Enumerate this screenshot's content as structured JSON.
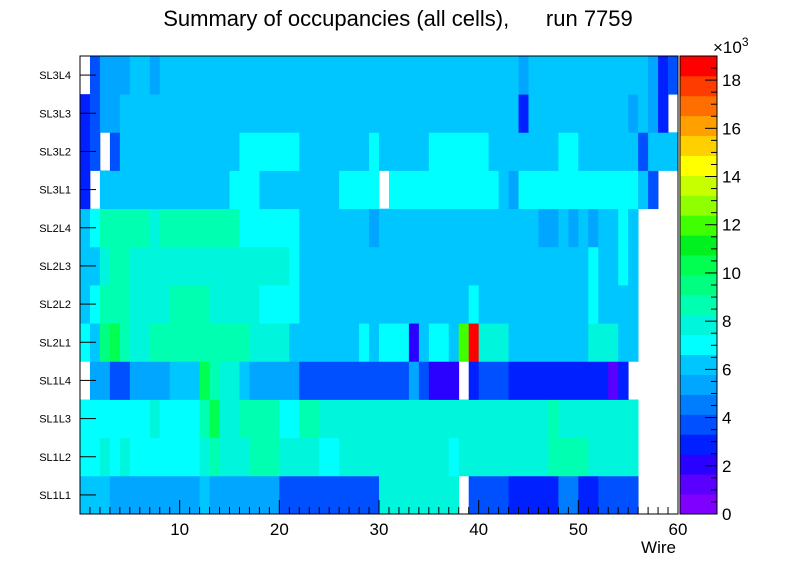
{
  "chart_data": {
    "type": "heatmap",
    "title": "Summary of occupancies (all cells),      run 7759",
    "xlabel": "Wire",
    "x_range": [
      0,
      60
    ],
    "x_ticks": [
      10,
      20,
      30,
      40,
      50,
      60
    ],
    "layers": [
      "SL1L1",
      "SL1L2",
      "SL1L3",
      "SL1L4",
      "SL2L1",
      "SL2L2",
      "SL2L3",
      "SL2L4",
      "SL3L1",
      "SL3L2",
      "SL3L3",
      "SL3L4"
    ],
    "z_range": [
      0,
      19000
    ],
    "z_ticks": [
      0,
      2,
      4,
      6,
      8,
      10,
      12,
      14,
      16,
      18
    ],
    "z_multiplier": "×10",
    "z_exponent": "3",
    "palette": [
      "#7f00ff",
      "#5a00ff",
      "#2a00ff",
      "#0020ff",
      "#0050ff",
      "#007cff",
      "#00a6ff",
      "#00c6ff",
      "#00ffff",
      "#00f6dc",
      "#00ffb0",
      "#00ff80",
      "#00ff50",
      "#00f020",
      "#40ff00",
      "#90ff00",
      "#c8ff00",
      "#ffff00",
      "#ffd000",
      "#ffa000",
      "#ff6e00",
      "#ff3c00",
      "#ff0000"
    ],
    "rows": [
      {
        "layer": "SL1L1",
        "runs": [
          [
            1,
            1,
            6000
          ],
          [
            2,
            3,
            6000
          ],
          [
            4,
            12,
            5000
          ],
          [
            13,
            13,
            6000
          ],
          [
            14,
            20,
            5000
          ],
          [
            21,
            30,
            3500
          ],
          [
            31,
            38,
            7600
          ],
          [
            39,
            39,
            null
          ],
          [
            40,
            43,
            3600
          ],
          [
            44,
            48,
            3000
          ],
          [
            49,
            50,
            4200
          ],
          [
            51,
            52,
            3000
          ],
          [
            53,
            56,
            4000
          ]
        ]
      },
      {
        "layer": "SL1L2",
        "runs": [
          [
            1,
            2,
            7000
          ],
          [
            3,
            3,
            7600
          ],
          [
            4,
            4,
            7000
          ],
          [
            5,
            5,
            7600
          ],
          [
            6,
            12,
            7000
          ],
          [
            13,
            13,
            7800
          ],
          [
            14,
            14,
            9000
          ],
          [
            15,
            15,
            8200
          ],
          [
            16,
            17,
            7800
          ],
          [
            18,
            20,
            9000
          ],
          [
            21,
            24,
            8200
          ],
          [
            25,
            26,
            7000
          ],
          [
            27,
            37,
            8000
          ],
          [
            38,
            38,
            7200
          ],
          [
            39,
            39,
            8000
          ],
          [
            40,
            47,
            8000
          ],
          [
            48,
            51,
            8800
          ],
          [
            52,
            56,
            8000
          ]
        ]
      },
      {
        "layer": "SL1L3",
        "runs": [
          [
            1,
            7,
            7000
          ],
          [
            8,
            8,
            7600
          ],
          [
            9,
            12,
            7000
          ],
          [
            13,
            13,
            8500
          ],
          [
            14,
            14,
            10000
          ],
          [
            15,
            16,
            7800
          ],
          [
            17,
            19,
            8600
          ],
          [
            20,
            20,
            9000
          ],
          [
            21,
            22,
            7000
          ],
          [
            23,
            24,
            8400
          ],
          [
            25,
            26,
            7600
          ],
          [
            27,
            47,
            8000
          ],
          [
            48,
            48,
            8800
          ],
          [
            49,
            56,
            8000
          ]
        ]
      },
      {
        "layer": "SL1L4",
        "runs": [
          [
            1,
            1,
            null
          ],
          [
            2,
            3,
            5200
          ],
          [
            4,
            5,
            4000
          ],
          [
            6,
            9,
            5000
          ],
          [
            10,
            12,
            6000
          ],
          [
            13,
            13,
            10000
          ],
          [
            14,
            14,
            9000
          ],
          [
            15,
            16,
            8000
          ],
          [
            17,
            17,
            5800
          ],
          [
            18,
            18,
            5000
          ],
          [
            19,
            19,
            5700
          ],
          [
            20,
            22,
            5000
          ],
          [
            23,
            33,
            3600
          ],
          [
            34,
            34,
            5000
          ],
          [
            35,
            35,
            4000
          ],
          [
            36,
            38,
            2000
          ],
          [
            39,
            39,
            null
          ],
          [
            40,
            40,
            3000
          ],
          [
            41,
            43,
            4000
          ],
          [
            44,
            53,
            3000
          ],
          [
            54,
            54,
            1500
          ],
          [
            55,
            55,
            3000
          ]
        ]
      },
      {
        "layer": "SL2L1",
        "runs": [
          [
            1,
            1,
            7000
          ],
          [
            2,
            2,
            6200
          ],
          [
            3,
            3,
            9500
          ],
          [
            4,
            4,
            10000
          ],
          [
            5,
            5,
            9000
          ],
          [
            6,
            7,
            8000
          ],
          [
            8,
            17,
            9000
          ],
          [
            18,
            21,
            7600
          ],
          [
            22,
            22,
            6200
          ],
          [
            23,
            28,
            6000
          ],
          [
            29,
            29,
            6800
          ],
          [
            30,
            30,
            6000
          ],
          [
            31,
            33,
            6700
          ],
          [
            34,
            34,
            2000
          ],
          [
            35,
            35,
            6000
          ],
          [
            36,
            37,
            6700
          ],
          [
            38,
            38,
            5800
          ],
          [
            39,
            39,
            12000
          ],
          [
            40,
            40,
            19000
          ],
          [
            41,
            43,
            8000
          ],
          [
            44,
            51,
            6000
          ],
          [
            52,
            54,
            7600
          ],
          [
            55,
            56,
            6000
          ]
        ]
      },
      {
        "layer": "SL2L2",
        "runs": [
          [
            1,
            1,
            5800
          ],
          [
            2,
            2,
            7000
          ],
          [
            3,
            3,
            8800
          ],
          [
            4,
            5,
            9000
          ],
          [
            6,
            9,
            8000
          ],
          [
            10,
            13,
            9000
          ],
          [
            14,
            18,
            8000
          ],
          [
            19,
            20,
            7000
          ],
          [
            21,
            22,
            6800
          ],
          [
            23,
            24,
            6000
          ],
          [
            25,
            32,
            5800
          ],
          [
            33,
            33,
            6200
          ],
          [
            34,
            35,
            5800
          ],
          [
            36,
            39,
            6600
          ],
          [
            40,
            40,
            7000
          ],
          [
            41,
            41,
            6600
          ],
          [
            42,
            51,
            6000
          ],
          [
            52,
            52,
            7000
          ],
          [
            53,
            54,
            6000
          ],
          [
            55,
            56,
            5800
          ]
        ]
      },
      {
        "layer": "SL2L3",
        "runs": [
          [
            1,
            1,
            6000
          ],
          [
            2,
            2,
            6600
          ],
          [
            3,
            3,
            8000
          ],
          [
            4,
            5,
            9000
          ],
          [
            6,
            9,
            7600
          ],
          [
            10,
            17,
            8000
          ],
          [
            18,
            21,
            7600
          ],
          [
            22,
            22,
            7000
          ],
          [
            23,
            36,
            5800
          ],
          [
            37,
            37,
            6200
          ],
          [
            38,
            38,
            5800
          ],
          [
            39,
            39,
            6200
          ],
          [
            40,
            51,
            5800
          ],
          [
            52,
            52,
            7000
          ],
          [
            53,
            54,
            6000
          ],
          [
            55,
            55,
            7000
          ],
          [
            56,
            56,
            5800
          ]
        ]
      },
      {
        "layer": "SL2L4",
        "runs": [
          [
            1,
            1,
            5800
          ],
          [
            2,
            2,
            7000
          ],
          [
            3,
            4,
            8400
          ],
          [
            5,
            7,
            9000
          ],
          [
            8,
            8,
            7600
          ],
          [
            9,
            16,
            8400
          ],
          [
            17,
            22,
            7000
          ],
          [
            23,
            29,
            6000
          ],
          [
            30,
            30,
            5000
          ],
          [
            31,
            46,
            6000
          ],
          [
            47,
            48,
            5000
          ],
          [
            49,
            49,
            6000
          ],
          [
            50,
            50,
            5000
          ],
          [
            51,
            51,
            6000
          ],
          [
            52,
            52,
            5000
          ],
          [
            53,
            54,
            6000
          ],
          [
            55,
            55,
            7000
          ],
          [
            56,
            56,
            6000
          ]
        ]
      },
      {
        "layer": "SL3L1",
        "runs": [
          [
            1,
            1,
            3000
          ],
          [
            2,
            2,
            null
          ],
          [
            3,
            15,
            5800
          ],
          [
            16,
            18,
            6800
          ],
          [
            19,
            26,
            5800
          ],
          [
            27,
            30,
            6800
          ],
          [
            31,
            31,
            null
          ],
          [
            32,
            42,
            6800
          ],
          [
            43,
            43,
            5800
          ],
          [
            44,
            44,
            5000
          ],
          [
            45,
            56,
            6800
          ],
          [
            57,
            57,
            5800
          ],
          [
            58,
            58,
            4000
          ]
        ]
      },
      {
        "layer": "SL3L2",
        "runs": [
          [
            1,
            1,
            3000
          ],
          [
            2,
            2,
            4000
          ],
          [
            3,
            3,
            null
          ],
          [
            4,
            4,
            4000
          ],
          [
            5,
            16,
            5800
          ],
          [
            17,
            22,
            6800
          ],
          [
            23,
            29,
            5800
          ],
          [
            30,
            30,
            6800
          ],
          [
            31,
            35,
            5800
          ],
          [
            36,
            41,
            6800
          ],
          [
            42,
            48,
            5800
          ],
          [
            49,
            50,
            6800
          ],
          [
            51,
            56,
            5800
          ],
          [
            57,
            57,
            4000
          ],
          [
            58,
            60,
            5800
          ]
        ]
      },
      {
        "layer": "SL3L3",
        "runs": [
          [
            1,
            1,
            3000
          ],
          [
            2,
            2,
            4000
          ],
          [
            3,
            4,
            5000
          ],
          [
            5,
            44,
            5800
          ],
          [
            45,
            45,
            3000
          ],
          [
            46,
            55,
            5800
          ],
          [
            56,
            56,
            5000
          ],
          [
            57,
            57,
            5800
          ],
          [
            58,
            58,
            5000
          ],
          [
            59,
            59,
            3000
          ]
        ]
      },
      {
        "layer": "SL3L4",
        "runs": [
          [
            1,
            1,
            null
          ],
          [
            2,
            2,
            4000
          ],
          [
            3,
            5,
            5000
          ],
          [
            6,
            7,
            5800
          ],
          [
            8,
            8,
            5000
          ],
          [
            9,
            44,
            5800
          ],
          [
            45,
            45,
            5000
          ],
          [
            46,
            57,
            5800
          ],
          [
            58,
            58,
            5000
          ],
          [
            59,
            59,
            3000
          ],
          [
            60,
            60,
            4000
          ]
        ]
      }
    ]
  }
}
